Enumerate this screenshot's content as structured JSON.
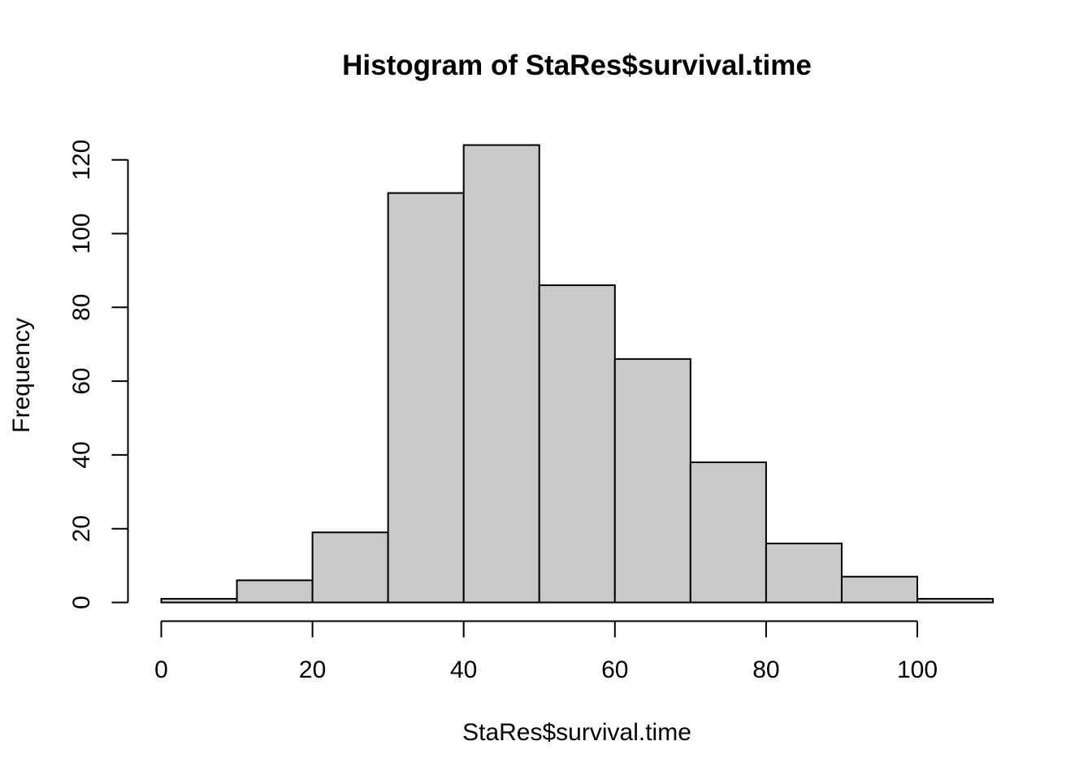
{
  "chart_data": {
    "type": "bar",
    "title": "Histogram of StaRes$survival.time",
    "xlabel": "StaRes$survival.time",
    "ylabel": "Frequency",
    "bins": [
      {
        "from": 0,
        "to": 10,
        "count": 1
      },
      {
        "from": 10,
        "to": 20,
        "count": 6
      },
      {
        "from": 20,
        "to": 30,
        "count": 19
      },
      {
        "from": 30,
        "to": 40,
        "count": 111
      },
      {
        "from": 40,
        "to": 50,
        "count": 124
      },
      {
        "from": 50,
        "to": 60,
        "count": 86
      },
      {
        "from": 60,
        "to": 70,
        "count": 66
      },
      {
        "from": 70,
        "to": 80,
        "count": 38
      },
      {
        "from": 80,
        "to": 90,
        "count": 16
      },
      {
        "from": 90,
        "to": 100,
        "count": 7
      },
      {
        "from": 100,
        "to": 110,
        "count": 1
      }
    ],
    "x_ticks": [
      0,
      20,
      40,
      60,
      80,
      100
    ],
    "y_ticks": [
      0,
      20,
      40,
      60,
      80,
      100,
      120
    ],
    "xlim": [
      0,
      110
    ],
    "ylim": [
      0,
      124
    ],
    "bar_fill": "#c9c9c9",
    "bar_stroke": "#000000",
    "grid": false
  }
}
